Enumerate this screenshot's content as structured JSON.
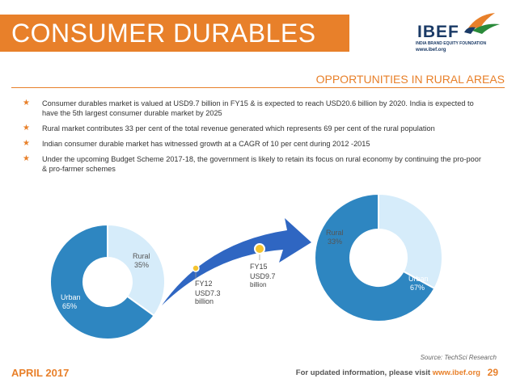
{
  "header": {
    "title": "CONSUMER DURABLES",
    "logo": {
      "name": "IBEF",
      "tagline": "INDIA BRAND EQUITY FOUNDATION",
      "url": "www.ibef.org"
    }
  },
  "section": {
    "title": "OPPORTUNITIES IN RURAL AREAS"
  },
  "bullets": [
    "Consumer durables market is valued at USD9.7 billion in FY15 & is expected to reach USD20.6 billion by 2020. India is expected to have the 5th largest consumer durable market by 2025",
    "Rural market contributes 33 per cent of the total revenue generated which represents 69 per cent of the rural population",
    "Indian consumer durable market has witnessed growth at a CAGR of 10 per cent during 2012 -2015",
    "Under the upcoming Budget Scheme 2017-18, the government is likely to retain its focus on rural economy by continuing the pro-poor & pro-farmer schemes"
  ],
  "chart_data": [
    {
      "type": "pie",
      "categories": [
        "Urban",
        "Rural"
      ],
      "values": [
        65,
        35
      ],
      "labels": [
        {
          "name": "Urban",
          "value": "65%"
        },
        {
          "name": "Rural",
          "value": "35%"
        }
      ],
      "colors": [
        "#2e86c1",
        "#d6ecfa"
      ]
    },
    {
      "type": "pie",
      "categories": [
        "Urban",
        "Rural"
      ],
      "values": [
        67,
        33
      ],
      "labels": [
        {
          "name": "Urban",
          "value": "67%"
        },
        {
          "name": "Rural",
          "value": "33%"
        }
      ],
      "colors": [
        "#2e86c1",
        "#d6ecfa"
      ]
    }
  ],
  "growth_arrow": {
    "start": {
      "year": "FY12",
      "value": "USD7.3",
      "unit": "billion"
    },
    "end": {
      "year": "FY15",
      "value": "USD9.7",
      "unit": "billion"
    }
  },
  "source": {
    "prefix": "Source:",
    "text": " TechSci Research"
  },
  "footer": {
    "date": "APRIL 2017",
    "note": "For updated information, please visit ",
    "url": "www.ibef.org",
    "page": "29"
  },
  "colors": {
    "accent": "#e8802a",
    "urban": "#2e86c1",
    "rural": "#d6ecfa",
    "arrow": "#2f66c2"
  }
}
